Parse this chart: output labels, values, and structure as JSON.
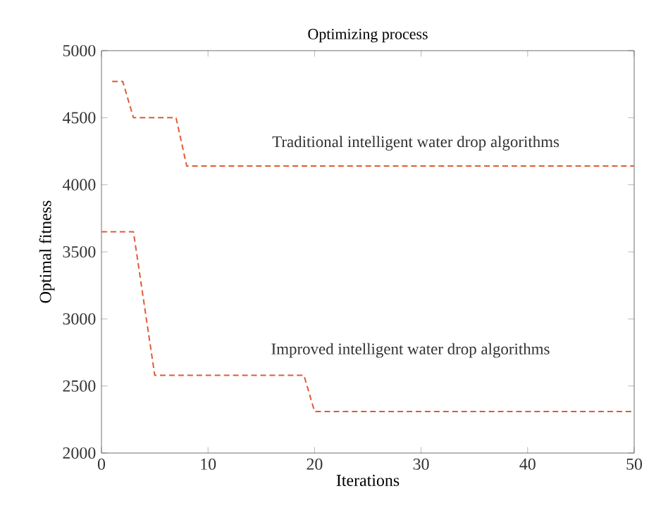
{
  "chart_data": {
    "type": "line",
    "title": "Optimizing process",
    "xlabel": "Iterations",
    "ylabel": "Optimal fitness",
    "series": [
      {
        "x": [
          1,
          2,
          3,
          7,
          8,
          50
        ],
        "values": [
          4770,
          4770,
          4500,
          4500,
          4140,
          4140
        ],
        "color": "#e05a35"
      },
      {
        "x": [
          0,
          3,
          5,
          19,
          20,
          50
        ],
        "values": [
          3650,
          3650,
          2580,
          2580,
          2310,
          2310
        ],
        "color": "#e05a35"
      }
    ],
    "annotations": [
      "Traditional intelligent water drop algorithms",
      "Improved intelligent water drop algorithms"
    ],
    "xlim": [
      0,
      50
    ],
    "ylim": [
      2000,
      5000
    ],
    "xticks": [
      0,
      10,
      20,
      30,
      40,
      50
    ],
    "yticks": [
      2000,
      2500,
      3000,
      3500,
      4000,
      4500,
      5000
    ],
    "line_style": "dashed",
    "marker": "none"
  }
}
